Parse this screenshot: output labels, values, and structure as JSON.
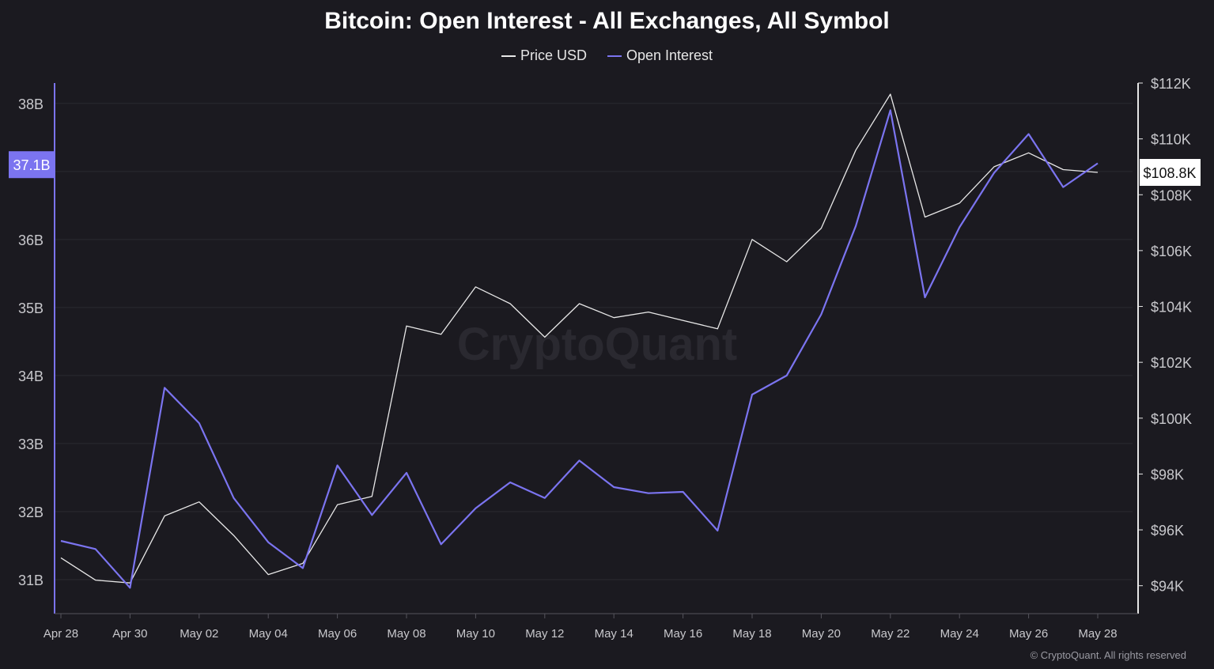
{
  "colors": {
    "background": "#1b1a20",
    "grid": "#2b2a31",
    "price": "#e8e8e8",
    "open_interest": "#7b74f0",
    "axis_text": "#c8c8cc"
  },
  "watermark": "CryptoQuant",
  "copyright": "© CryptoQuant. All rights reserved",
  "chart_data": {
    "type": "line",
    "title": "Bitcoin: Open Interest - All Exchanges, All Symbol",
    "legend_position": "top-center",
    "grid": true,
    "x": [
      "Apr 28",
      "Apr 29",
      "Apr 30",
      "May 01",
      "May 02",
      "May 03",
      "May 04",
      "May 05",
      "May 06",
      "May 07",
      "May 08",
      "May 09",
      "May 10",
      "May 11",
      "May 12",
      "May 13",
      "May 14",
      "May 15",
      "May 16",
      "May 17",
      "May 18",
      "May 19",
      "May 20",
      "May 21",
      "May 22",
      "May 23",
      "May 24",
      "May 25",
      "May 26",
      "May 27",
      "May 28"
    ],
    "x_tick_labels": [
      "Apr 28",
      "Apr 30",
      "May 02",
      "May 04",
      "May 06",
      "May 08",
      "May 10",
      "May 12",
      "May 14",
      "May 16",
      "May 18",
      "May 20",
      "May 22",
      "May 24",
      "May 26",
      "May 28"
    ],
    "series": [
      {
        "name": "Price USD",
        "axis": "right",
        "values": [
          95000,
          94200,
          94100,
          96500,
          97000,
          95800,
          94400,
          94800,
          96900,
          97200,
          103300,
          103000,
          104700,
          104100,
          102900,
          104100,
          103600,
          103800,
          103500,
          103200,
          106400,
          105600,
          106800,
          109600,
          111600,
          107200,
          107700,
          109000,
          109500,
          108900,
          108800
        ]
      },
      {
        "name": "Open Interest",
        "axis": "left",
        "values": [
          31.57,
          31.45,
          30.88,
          33.82,
          33.3,
          32.2,
          31.55,
          31.17,
          32.68,
          31.95,
          32.57,
          31.52,
          32.05,
          32.43,
          32.2,
          32.75,
          32.36,
          32.27,
          32.29,
          31.72,
          33.72,
          34.0,
          34.9,
          36.2,
          37.9,
          35.15,
          36.18,
          36.98,
          37.55,
          36.77,
          37.12
        ]
      }
    ],
    "y_left": {
      "ylim": [
        30.5,
        38.3
      ],
      "ticks": [
        31,
        32,
        33,
        34,
        35,
        36,
        37,
        38
      ],
      "tick_labels": [
        "31B",
        "32B",
        "33B",
        "34B",
        "35B",
        "36B",
        "37B",
        "38B"
      ],
      "current_label": "37.1B",
      "current_value": 37.1
    },
    "y_right": {
      "ylim": [
        93000,
        112000
      ],
      "ticks": [
        94000,
        96000,
        98000,
        100000,
        102000,
        104000,
        106000,
        108000,
        110000,
        112000
      ],
      "tick_labels": [
        "$94K",
        "$96K",
        "$98K",
        "$100K",
        "$102K",
        "$104K",
        "$106K",
        "$108K",
        "$110K",
        "$112K"
      ],
      "current_label": "$108.8K",
      "current_value": 108800
    }
  }
}
